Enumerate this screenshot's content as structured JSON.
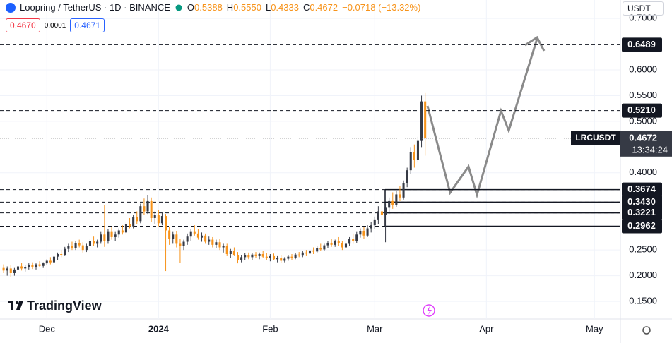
{
  "header": {
    "symbol": "Loopring / TetherUS · 1D · BINANCE",
    "o_label": "O",
    "o": "0.5388",
    "h_label": "H",
    "h": "0.5550",
    "l_label": "L",
    "l": "0.4333",
    "c_label": "C",
    "c": "0.4672",
    "change": "−0.0718 (−13.32%)",
    "bid": "0.4670",
    "spread": "0.0001",
    "ask": "0.4671",
    "currency": "USDT",
    "watermark": "TradingView"
  },
  "chart_data": {
    "type": "candlestick",
    "symbol_label": "LRCUSDT",
    "last_price": 0.4672,
    "countdown": "13:34:24",
    "up_color": "#363a45",
    "down_color": "#f7931a",
    "ylim": [
      0.1158,
      0.7358
    ],
    "xlim": [
      -1,
      171.2
    ],
    "yticks": [
      {
        "value": 0.7,
        "label": "0.7000"
      },
      {
        "value": 0.6,
        "label": "0.6000"
      },
      {
        "value": 0.55,
        "label": "0.5500"
      },
      {
        "value": 0.5,
        "label": "0.5000"
      },
      {
        "value": 0.4,
        "label": "0.4000"
      },
      {
        "value": 0.25,
        "label": "0.2500"
      },
      {
        "value": 0.2,
        "label": "0.2000"
      },
      {
        "value": 0.15,
        "label": "0.1500"
      }
    ],
    "xticks": [
      {
        "value": 12,
        "label": "Dec"
      },
      {
        "value": 43,
        "label": "2024"
      },
      {
        "value": 74,
        "label": "Feb"
      },
      {
        "value": 103,
        "label": "Mar"
      },
      {
        "value": 134,
        "label": "Apr"
      },
      {
        "value": 164,
        "label": "May"
      }
    ],
    "levels": [
      0.6489,
      {
        "value": 0.521,
        "label": "0.5210"
      },
      0.3674,
      {
        "value": 0.343,
        "label": "0.3430"
      },
      0.3221,
      0.2962
    ],
    "grid": true,
    "ohlc": [
      [
        0.215,
        0.222,
        0.205,
        0.21
      ],
      [
        0.21,
        0.218,
        0.2,
        0.214
      ],
      [
        0.214,
        0.22,
        0.197,
        0.205
      ],
      [
        0.205,
        0.215,
        0.2,
        0.212
      ],
      [
        0.212,
        0.222,
        0.208,
        0.218
      ],
      [
        0.218,
        0.225,
        0.21,
        0.214
      ],
      [
        0.214,
        0.22,
        0.208,
        0.217
      ],
      [
        0.217,
        0.224,
        0.212,
        0.221
      ],
      [
        0.221,
        0.226,
        0.213,
        0.216
      ],
      [
        0.216,
        0.224,
        0.212,
        0.222
      ],
      [
        0.222,
        0.228,
        0.216,
        0.219
      ],
      [
        0.219,
        0.226,
        0.215,
        0.224
      ],
      [
        0.224,
        0.232,
        0.22,
        0.229
      ],
      [
        0.229,
        0.236,
        0.222,
        0.226
      ],
      [
        0.226,
        0.24,
        0.223,
        0.237
      ],
      [
        0.237,
        0.245,
        0.23,
        0.242
      ],
      [
        0.242,
        0.25,
        0.236,
        0.24
      ],
      [
        0.24,
        0.256,
        0.238,
        0.252
      ],
      [
        0.252,
        0.262,
        0.246,
        0.258
      ],
      [
        0.258,
        0.266,
        0.25,
        0.254
      ],
      [
        0.254,
        0.268,
        0.25,
        0.263
      ],
      [
        0.263,
        0.27,
        0.255,
        0.259
      ],
      [
        0.259,
        0.265,
        0.245,
        0.25
      ],
      [
        0.25,
        0.262,
        0.246,
        0.258
      ],
      [
        0.258,
        0.272,
        0.254,
        0.268
      ],
      [
        0.268,
        0.276,
        0.258,
        0.262
      ],
      [
        0.262,
        0.27,
        0.255,
        0.266
      ],
      [
        0.266,
        0.285,
        0.262,
        0.28
      ],
      [
        0.28,
        0.338,
        0.256,
        0.268
      ],
      [
        0.268,
        0.29,
        0.262,
        0.285
      ],
      [
        0.285,
        0.295,
        0.27,
        0.275
      ],
      [
        0.275,
        0.285,
        0.268,
        0.28
      ],
      [
        0.28,
        0.292,
        0.274,
        0.288
      ],
      [
        0.288,
        0.298,
        0.28,
        0.284
      ],
      [
        0.284,
        0.304,
        0.28,
        0.3
      ],
      [
        0.3,
        0.312,
        0.292,
        0.296
      ],
      [
        0.296,
        0.318,
        0.292,
        0.314
      ],
      [
        0.314,
        0.325,
        0.3,
        0.306
      ],
      [
        0.306,
        0.34,
        0.302,
        0.335
      ],
      [
        0.335,
        0.35,
        0.318,
        0.325
      ],
      [
        0.325,
        0.357,
        0.32,
        0.345
      ],
      [
        0.345,
        0.352,
        0.305,
        0.312
      ],
      [
        0.312,
        0.325,
        0.3,
        0.318
      ],
      [
        0.318,
        0.328,
        0.296,
        0.302
      ],
      [
        0.302,
        0.322,
        0.298,
        0.316
      ],
      [
        0.316,
        0.32,
        0.209,
        0.288
      ],
      [
        0.288,
        0.295,
        0.26,
        0.272
      ],
      [
        0.272,
        0.285,
        0.262,
        0.28
      ],
      [
        0.28,
        0.286,
        0.255,
        0.262
      ],
      [
        0.262,
        0.272,
        0.225,
        0.258
      ],
      [
        0.258,
        0.27,
        0.25,
        0.266
      ],
      [
        0.266,
        0.282,
        0.26,
        0.276
      ],
      [
        0.276,
        0.29,
        0.268,
        0.285
      ],
      [
        0.285,
        0.298,
        0.278,
        0.282
      ],
      [
        0.282,
        0.29,
        0.27,
        0.274
      ],
      [
        0.274,
        0.284,
        0.266,
        0.278
      ],
      [
        0.278,
        0.282,
        0.262,
        0.266
      ],
      [
        0.266,
        0.276,
        0.26,
        0.27
      ],
      [
        0.27,
        0.275,
        0.255,
        0.26
      ],
      [
        0.26,
        0.27,
        0.254,
        0.265
      ],
      [
        0.265,
        0.272,
        0.25,
        0.255
      ],
      [
        0.255,
        0.262,
        0.245,
        0.258
      ],
      [
        0.258,
        0.262,
        0.238,
        0.242
      ],
      [
        0.242,
        0.252,
        0.235,
        0.248
      ],
      [
        0.248,
        0.255,
        0.238,
        0.24
      ],
      [
        0.24,
        0.246,
        0.224,
        0.23
      ],
      [
        0.23,
        0.24,
        0.226,
        0.236
      ],
      [
        0.236,
        0.244,
        0.23,
        0.24
      ],
      [
        0.24,
        0.245,
        0.232,
        0.236
      ],
      [
        0.236,
        0.244,
        0.23,
        0.241
      ],
      [
        0.241,
        0.246,
        0.234,
        0.238
      ],
      [
        0.238,
        0.245,
        0.232,
        0.242
      ],
      [
        0.242,
        0.248,
        0.234,
        0.237
      ],
      [
        0.237,
        0.244,
        0.23,
        0.235
      ],
      [
        0.235,
        0.242,
        0.228,
        0.238
      ],
      [
        0.238,
        0.243,
        0.23,
        0.232
      ],
      [
        0.232,
        0.238,
        0.226,
        0.234
      ],
      [
        0.234,
        0.24,
        0.225,
        0.229
      ],
      [
        0.229,
        0.236,
        0.226,
        0.233
      ],
      [
        0.233,
        0.24,
        0.229,
        0.237
      ],
      [
        0.237,
        0.242,
        0.23,
        0.235
      ],
      [
        0.235,
        0.244,
        0.232,
        0.241
      ],
      [
        0.241,
        0.246,
        0.236,
        0.239
      ],
      [
        0.239,
        0.248,
        0.236,
        0.245
      ],
      [
        0.245,
        0.25,
        0.238,
        0.243
      ],
      [
        0.243,
        0.252,
        0.24,
        0.249
      ],
      [
        0.249,
        0.255,
        0.242,
        0.247
      ],
      [
        0.247,
        0.258,
        0.244,
        0.254
      ],
      [
        0.254,
        0.262,
        0.248,
        0.251
      ],
      [
        0.251,
        0.262,
        0.248,
        0.259
      ],
      [
        0.259,
        0.268,
        0.254,
        0.264
      ],
      [
        0.264,
        0.272,
        0.256,
        0.26
      ],
      [
        0.26,
        0.27,
        0.256,
        0.267
      ],
      [
        0.267,
        0.275,
        0.258,
        0.263
      ],
      [
        0.263,
        0.268,
        0.25,
        0.255
      ],
      [
        0.255,
        0.266,
        0.252,
        0.262
      ],
      [
        0.262,
        0.275,
        0.258,
        0.272
      ],
      [
        0.272,
        0.282,
        0.262,
        0.268
      ],
      [
        0.268,
        0.285,
        0.264,
        0.28
      ],
      [
        0.28,
        0.292,
        0.274,
        0.286
      ],
      [
        0.286,
        0.295,
        0.272,
        0.278
      ],
      [
        0.278,
        0.298,
        0.275,
        0.292
      ],
      [
        0.292,
        0.305,
        0.284,
        0.298
      ],
      [
        0.298,
        0.315,
        0.29,
        0.308
      ],
      [
        0.308,
        0.335,
        0.3,
        0.325
      ],
      [
        0.325,
        0.345,
        0.31,
        0.318
      ],
      [
        0.318,
        0.34,
        0.265,
        0.332
      ],
      [
        0.332,
        0.352,
        0.32,
        0.345
      ],
      [
        0.345,
        0.362,
        0.33,
        0.338
      ],
      [
        0.338,
        0.365,
        0.334,
        0.358
      ],
      [
        0.358,
        0.375,
        0.345,
        0.352
      ],
      [
        0.352,
        0.385,
        0.348,
        0.38
      ],
      [
        0.38,
        0.41,
        0.372,
        0.405
      ],
      [
        0.405,
        0.45,
        0.398,
        0.44
      ],
      [
        0.44,
        0.455,
        0.41,
        0.425
      ],
      [
        0.425,
        0.47,
        0.42,
        0.462
      ],
      [
        0.462,
        0.55,
        0.45,
        0.5388
      ],
      [
        0.5388,
        0.555,
        0.4333,
        0.4672
      ]
    ]
  }
}
